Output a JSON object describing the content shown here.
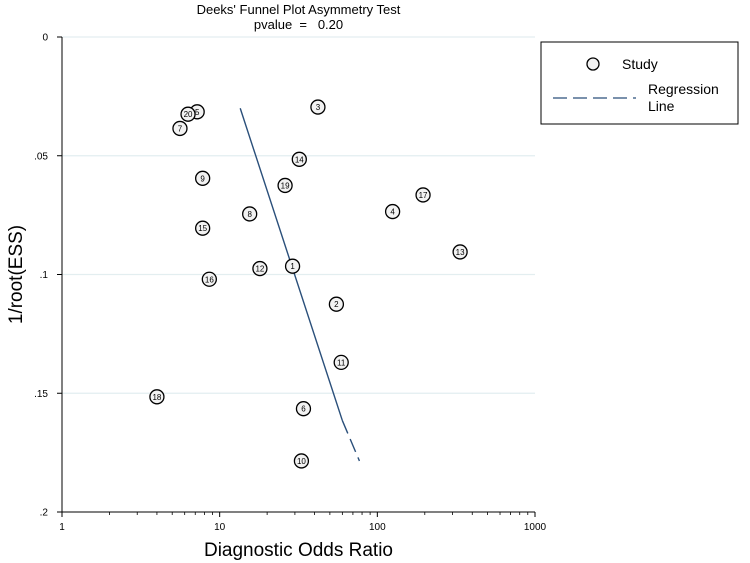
{
  "chart_data": {
    "type": "scatter",
    "title": "Deeks' Funnel Plot Asymmetry Test",
    "subtitle": "pvalue  =   0.20",
    "xlabel": "Diagnostic Odds Ratio",
    "ylabel": "1/root(ESS)",
    "x_scale": "log",
    "xlim": [
      1,
      1000
    ],
    "ylim": [
      0,
      0.2
    ],
    "y_inverted": true,
    "x_ticks": [
      1,
      10,
      100,
      1000
    ],
    "x_tick_labels": [
      "1",
      "10",
      "100",
      "1000"
    ],
    "y_ticks": [
      0,
      0.05,
      0.1,
      0.15,
      0.2
    ],
    "y_tick_labels": [
      "0",
      ".05",
      ".1",
      ".15",
      ".2"
    ],
    "grid": "horizontal",
    "legend": {
      "position": "right",
      "items": [
        {
          "label": "Study",
          "marker": "circle"
        },
        {
          "label_line1": "Regression",
          "label_line2": "Line",
          "marker": "dashed-line"
        }
      ]
    },
    "colors": {
      "regression": "#2a4f7a",
      "marker_fill": "#f2f2f2",
      "grid": "#e3eef0"
    },
    "studies": [
      {
        "id": "1",
        "x": 29,
        "y": 0.0965
      },
      {
        "id": "2",
        "x": 55,
        "y": 0.1125
      },
      {
        "id": "3",
        "x": 42,
        "y": 0.0295
      },
      {
        "id": "4",
        "x": 125,
        "y": 0.0735
      },
      {
        "id": "5",
        "x": 7.2,
        "y": 0.0315
      },
      {
        "id": "6",
        "x": 34,
        "y": 0.1565
      },
      {
        "id": "7",
        "x": 5.6,
        "y": 0.0385
      },
      {
        "id": "8",
        "x": 15.5,
        "y": 0.0745
      },
      {
        "id": "9",
        "x": 7.8,
        "y": 0.0595
      },
      {
        "id": "10",
        "x": 33,
        "y": 0.1785
      },
      {
        "id": "11",
        "x": 59,
        "y": 0.137
      },
      {
        "id": "12",
        "x": 18,
        "y": 0.0975
      },
      {
        "id": "13",
        "x": 335,
        "y": 0.0905
      },
      {
        "id": "14",
        "x": 32,
        "y": 0.0515
      },
      {
        "id": "15",
        "x": 7.8,
        "y": 0.0805
      },
      {
        "id": "16",
        "x": 8.6,
        "y": 0.102
      },
      {
        "id": "17",
        "x": 195,
        "y": 0.0665
      },
      {
        "id": "18",
        "x": 4,
        "y": 0.1515
      },
      {
        "id": "19",
        "x": 26,
        "y": 0.0625
      },
      {
        "id": "20",
        "x": 6.3,
        "y": 0.0325
      }
    ],
    "regression": {
      "solid": {
        "x": [
          13.5,
          60
        ],
        "y": [
          0.03,
          0.1615
        ]
      },
      "dashed": {
        "x": [
          60,
          77
        ],
        "y": [
          0.1615,
          0.1785
        ]
      }
    }
  }
}
